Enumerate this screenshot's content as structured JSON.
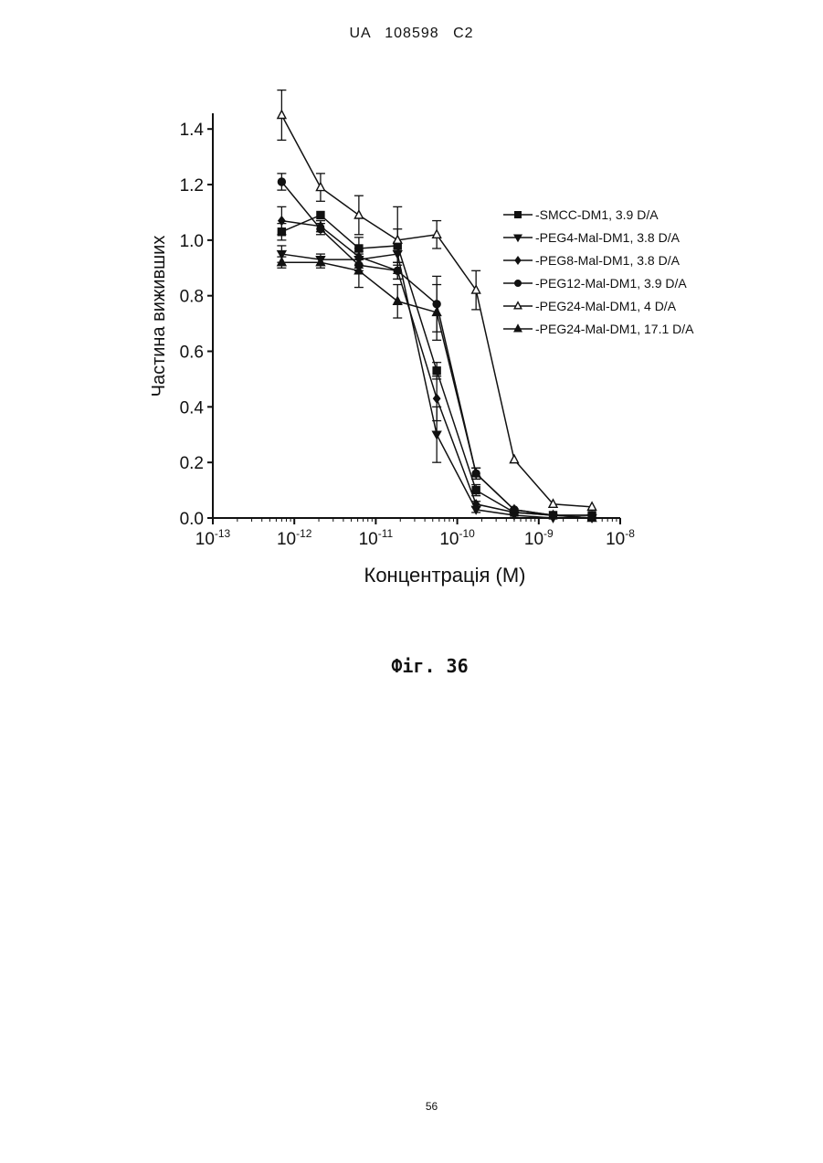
{
  "header": {
    "text": "UA   108598   C2"
  },
  "caption": "Фіг. 36",
  "page_number": "56",
  "chart_data": {
    "type": "line",
    "title": "",
    "xlabel": "Концентрація (М)",
    "ylabel": "Частина виживших",
    "x_scale": "log",
    "xlim": [
      1e-13,
      1e-08
    ],
    "ylim": [
      0,
      1.45
    ],
    "x_ticks": [
      {
        "value": 1e-13,
        "base": "10",
        "exp": "-13"
      },
      {
        "value": 1e-12,
        "base": "10",
        "exp": "-12"
      },
      {
        "value": 1e-11,
        "base": "10",
        "exp": "-11"
      },
      {
        "value": 1e-10,
        "base": "10",
        "exp": "-10"
      },
      {
        "value": 1e-09,
        "base": "10",
        "exp": "-9"
      },
      {
        "value": 1e-08,
        "base": "10",
        "exp": "-8"
      }
    ],
    "y_ticks": [
      {
        "value": 0.0,
        "label": "0.0"
      },
      {
        "value": 0.2,
        "label": "0.2"
      },
      {
        "value": 0.4,
        "label": "0.4"
      },
      {
        "value": 0.6,
        "label": "0.6"
      },
      {
        "value": 0.8,
        "label": "0.8"
      },
      {
        "value": 1.0,
        "label": "1.0"
      },
      {
        "value": 1.2,
        "label": "1.2"
      },
      {
        "value": 1.4,
        "label": "1.4"
      }
    ],
    "grid": false,
    "legend_position": "right",
    "x": [
      7e-13,
      2.1e-12,
      6.2e-12,
      1.85e-11,
      5.6e-11,
      1.7e-10,
      5e-10,
      1.5e-09,
      4.5e-09
    ],
    "series": [
      {
        "name": "-SMCC-DM1, 3.9 D/A",
        "marker": "square-filled",
        "values": [
          1.03,
          1.09,
          0.97,
          0.98,
          0.53,
          0.1,
          0.02,
          0.01,
          0.01
        ],
        "errors": [
          0.03,
          0.0,
          0.04,
          0.06,
          0.03,
          0.02,
          0.0,
          0.0,
          0.0
        ]
      },
      {
        "name": "-PEG4-Mal-DM1, 3.8 D/A",
        "marker": "triangle-down-filled",
        "values": [
          0.95,
          0.93,
          0.93,
          0.95,
          0.3,
          0.03,
          0.01,
          0.0,
          0.0
        ],
        "errors": [
          0.03,
          0.02,
          0.03,
          0.04,
          0.1,
          0.01,
          0.0,
          0.0,
          0.0
        ]
      },
      {
        "name": "-PEG8-Mal-DM1, 3.8 D/A",
        "marker": "diamond-filled",
        "values": [
          1.07,
          1.05,
          0.94,
          0.89,
          0.43,
          0.05,
          0.02,
          0.01,
          0.0
        ],
        "errors": [
          0.05,
          0.02,
          0.03,
          0.03,
          0.08,
          0.01,
          0.0,
          0.0,
          0.0
        ]
      },
      {
        "name": "-PEG12-Mal-DM1, 3.9 D/A",
        "marker": "circle-filled",
        "values": [
          1.21,
          1.04,
          0.91,
          0.89,
          0.77,
          0.16,
          0.03,
          0.01,
          0.01
        ],
        "errors": [
          0.03,
          0.02,
          0.02,
          0.03,
          0.1,
          0.02,
          0.0,
          0.0,
          0.0
        ]
      },
      {
        "name": "-PEG24-Mal-DM1, 4 D/A",
        "marker": "triangle-up-open",
        "values": [
          1.45,
          1.19,
          1.09,
          1.0,
          1.02,
          0.82,
          0.21,
          0.05,
          0.04
        ],
        "errors": [
          0.09,
          0.05,
          0.07,
          0.12,
          0.05,
          0.07,
          0.0,
          0.0,
          0.0
        ]
      },
      {
        "name": "-PEG24-Mal-DM1, 17.1 D/A",
        "marker": "triangle-up-filled",
        "values": [
          0.92,
          0.92,
          0.89,
          0.78,
          0.74,
          0.16,
          0.03,
          0.01,
          0.0
        ],
        "errors": [
          0.02,
          0.02,
          0.06,
          0.06,
          0.1,
          0.02,
          0.0,
          0.0,
          0.0
        ]
      }
    ],
    "colors": {
      "ink": "#111111",
      "background": "#ffffff"
    }
  }
}
